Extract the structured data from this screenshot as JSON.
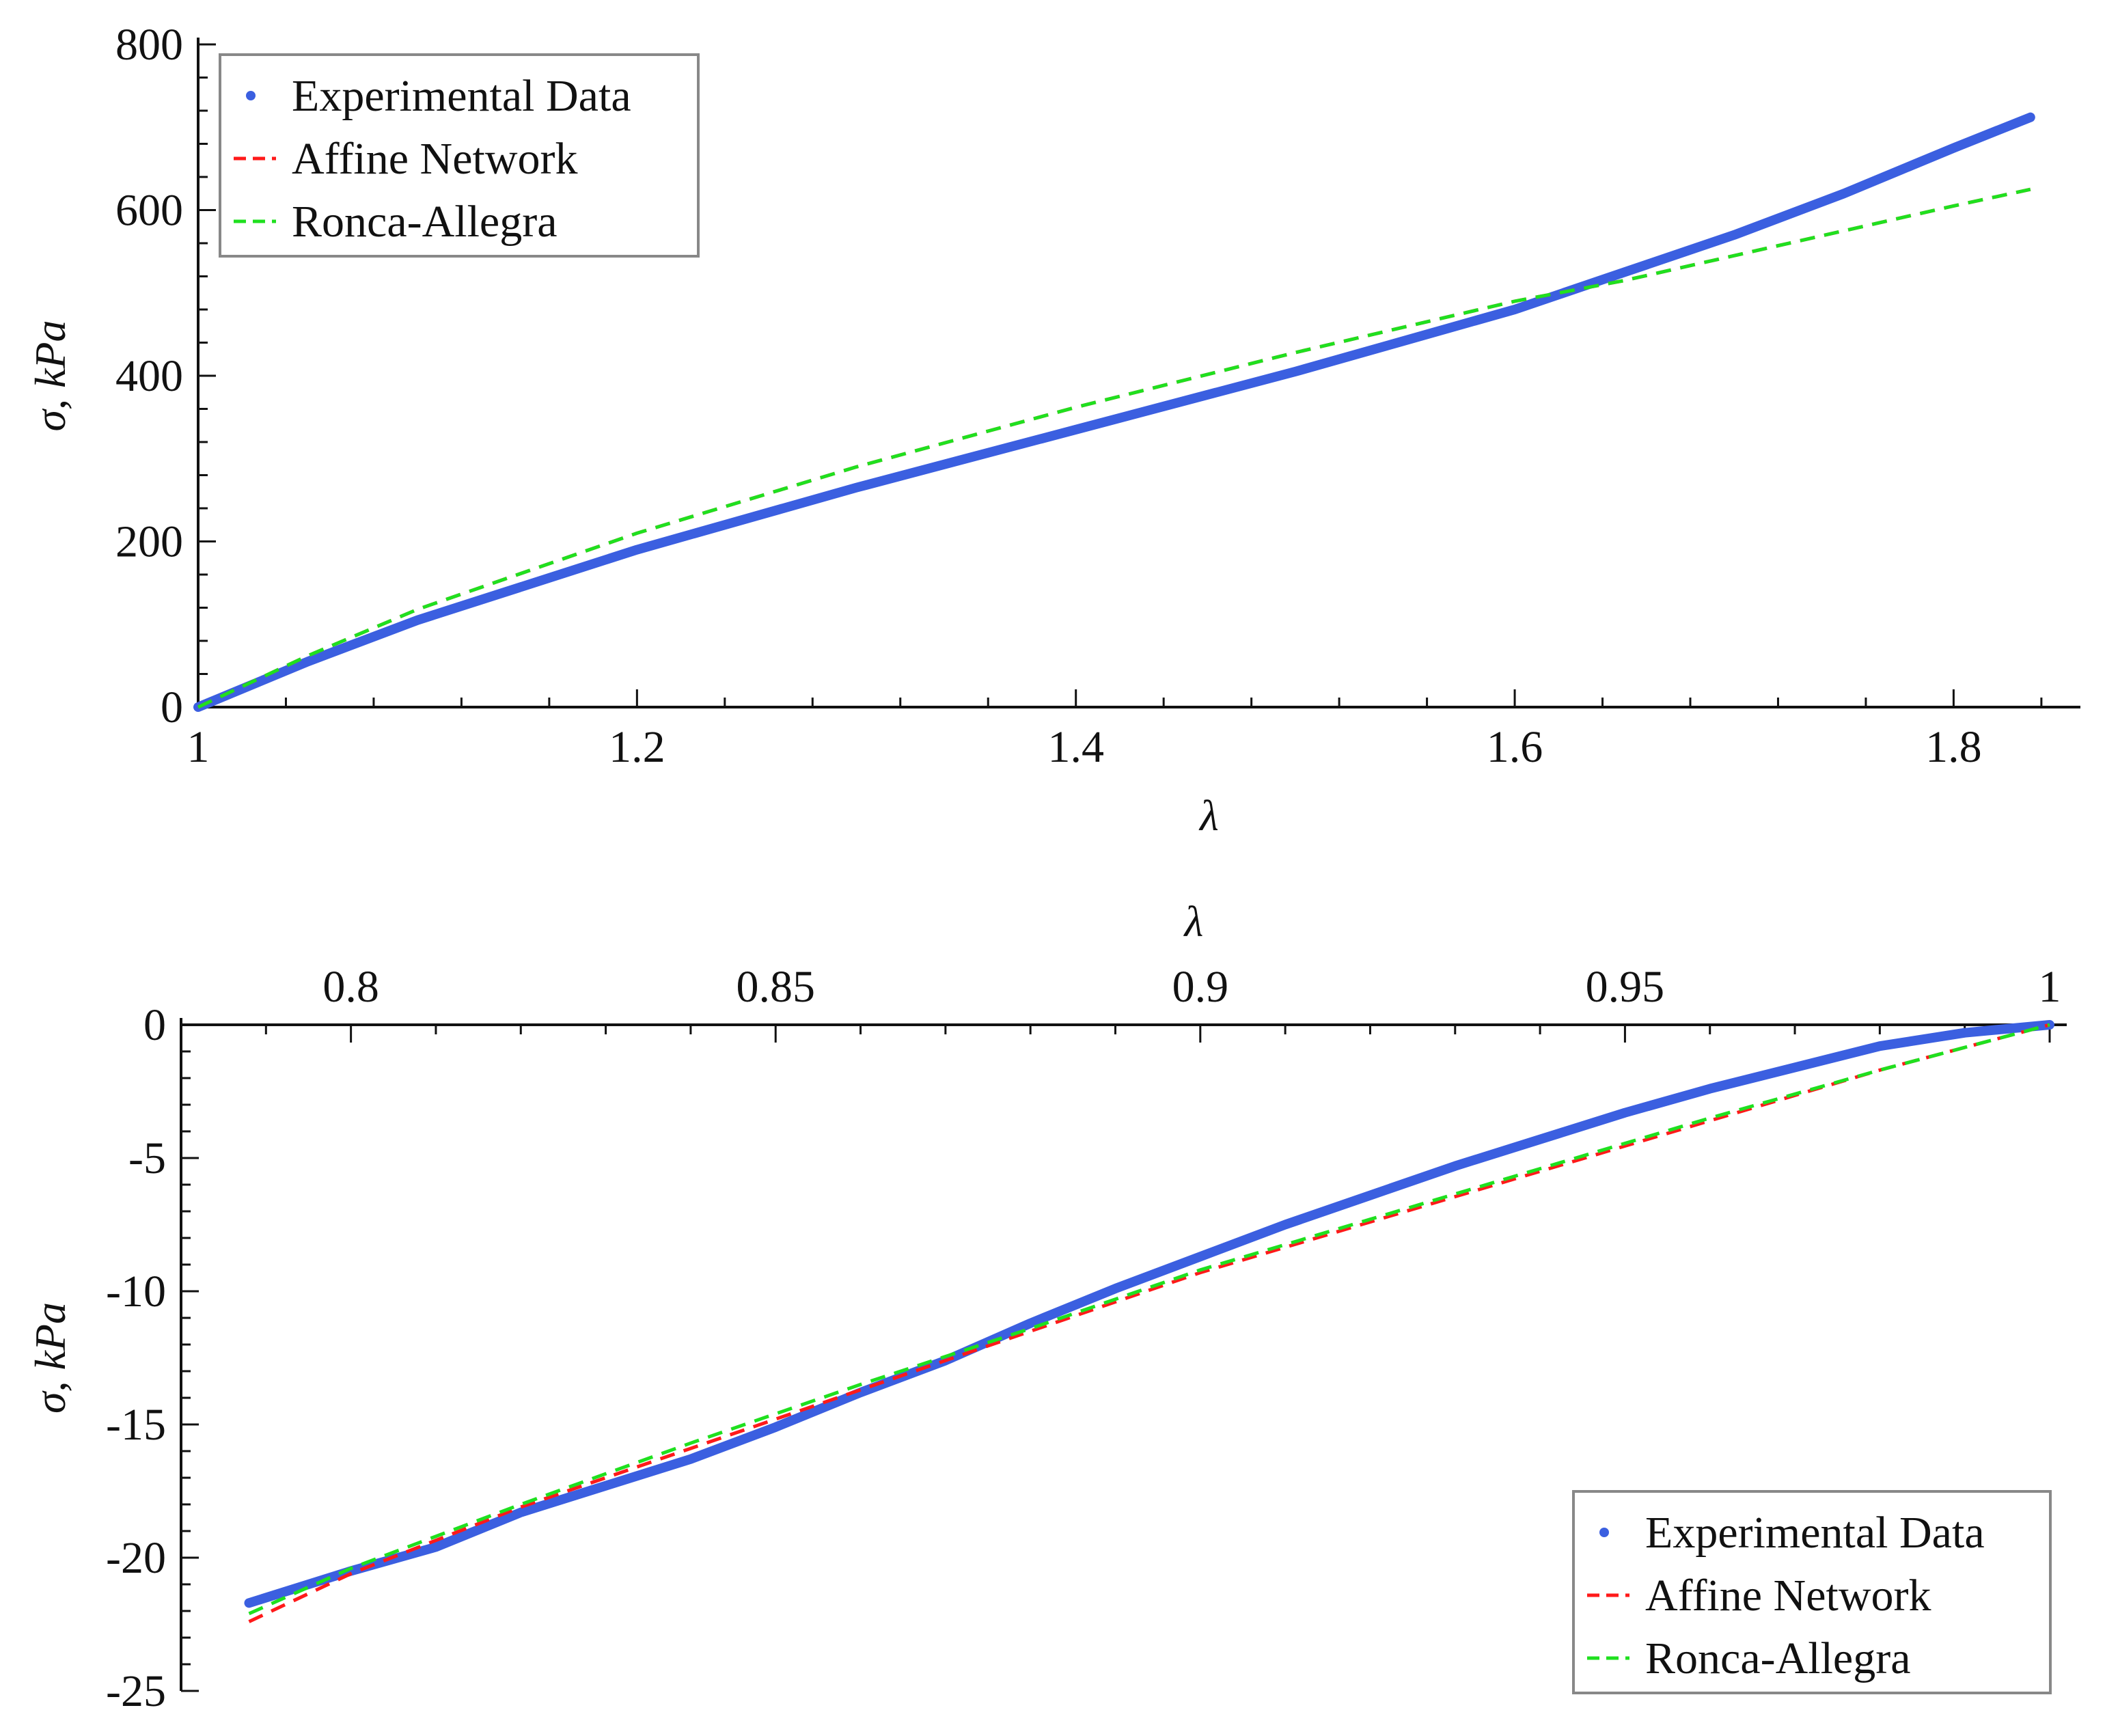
{
  "colors": {
    "experimental": "#3b5fe0",
    "affine": "#ff1a1a",
    "ronca": "#1fe01f",
    "axis": "#111111",
    "legend_border": "#888888"
  },
  "chart_data": [
    {
      "type": "line",
      "title": "",
      "xlabel": "λ",
      "ylabel": "σ, kPa",
      "xlim": [
        1.0,
        1.85
      ],
      "ylim": [
        0,
        800
      ],
      "x_ticks": [
        1,
        1.2,
        1.4,
        1.6,
        1.8
      ],
      "x_tick_labels": [
        "1",
        "1.2",
        "1.4",
        "1.6",
        "1.8"
      ],
      "y_ticks": [
        0,
        200,
        400,
        600,
        800
      ],
      "y_tick_labels": [
        "0",
        "200",
        "400",
        "600",
        "800"
      ],
      "x_axis_position": "bottom",
      "grid": false,
      "legend_position": "top-left",
      "legend": [
        "Experimental Data",
        "Affine Network",
        "Ronca-Allegra"
      ],
      "series": [
        {
          "name": "Experimental Data",
          "style": "thick-solid",
          "x": [
            1.0,
            1.05,
            1.1,
            1.2,
            1.3,
            1.4,
            1.5,
            1.6,
            1.65,
            1.7,
            1.75,
            1.8,
            1.835
          ],
          "y": [
            0,
            55,
            105,
            190,
            265,
            335,
            405,
            480,
            525,
            570,
            620,
            675,
            712
          ]
        },
        {
          "name": "Affine Network",
          "style": "dashed",
          "x": [
            1.0,
            1.05,
            1.1,
            1.2,
            1.3,
            1.4,
            1.5,
            1.6,
            1.65,
            1.7,
            1.75,
            1.8,
            1.835
          ],
          "y": [
            0,
            62,
            118,
            210,
            290,
            362,
            428,
            490,
            515,
            545,
            575,
            605,
            625
          ]
        },
        {
          "name": "Ronca-Allegra",
          "style": "dashed",
          "x": [
            1.0,
            1.05,
            1.1,
            1.2,
            1.3,
            1.4,
            1.5,
            1.6,
            1.65,
            1.7,
            1.75,
            1.8,
            1.835
          ],
          "y": [
            0,
            62,
            118,
            210,
            290,
            362,
            428,
            490,
            515,
            545,
            575,
            605,
            625
          ]
        }
      ]
    },
    {
      "type": "line",
      "title": "",
      "xlabel": "λ",
      "ylabel": "σ, kPa",
      "xlim": [
        0.78,
        1.0
      ],
      "ylim": [
        -25,
        0
      ],
      "x_ticks": [
        0.8,
        0.85,
        0.9,
        0.95,
        1
      ],
      "x_tick_labels": [
        "0.8",
        "0.85",
        "0.9",
        "0.95",
        "1"
      ],
      "y_ticks": [
        0,
        -5,
        -10,
        -15,
        -20,
        -25
      ],
      "y_tick_labels": [
        "0",
        "-5",
        "-10",
        "-15",
        "-20",
        "-25"
      ],
      "x_axis_position": "top",
      "grid": false,
      "legend_position": "bottom-right",
      "legend": [
        "Experimental Data",
        "Affine Network",
        "Ronca-Allegra"
      ],
      "series": [
        {
          "name": "Experimental Data",
          "style": "thick-solid",
          "x": [
            0.788,
            0.8,
            0.81,
            0.82,
            0.83,
            0.84,
            0.85,
            0.86,
            0.87,
            0.88,
            0.89,
            0.9,
            0.91,
            0.92,
            0.93,
            0.94,
            0.95,
            0.96,
            0.97,
            0.98,
            0.99,
            1.0
          ],
          "y": [
            -21.7,
            -20.5,
            -19.6,
            -18.3,
            -17.3,
            -16.3,
            -15.1,
            -13.8,
            -12.6,
            -11.2,
            -9.9,
            -8.7,
            -7.5,
            -6.4,
            -5.3,
            -4.3,
            -3.3,
            -2.4,
            -1.6,
            -0.8,
            -0.3,
            0
          ]
        },
        {
          "name": "Affine Network",
          "style": "dashed",
          "x": [
            0.788,
            0.8,
            0.82,
            0.84,
            0.86,
            0.88,
            0.9,
            0.92,
            0.94,
            0.96,
            0.98,
            1.0
          ],
          "y": [
            -22.4,
            -20.6,
            -18.1,
            -15.9,
            -13.7,
            -11.5,
            -9.3,
            -7.4,
            -5.5,
            -3.6,
            -1.7,
            0
          ]
        },
        {
          "name": "Ronca-Allegra",
          "style": "dashed",
          "x": [
            0.788,
            0.8,
            0.82,
            0.84,
            0.86,
            0.88,
            0.9,
            0.92,
            0.94,
            0.96,
            0.98,
            1.0
          ],
          "y": [
            -22.1,
            -20.4,
            -18.0,
            -15.7,
            -13.5,
            -11.4,
            -9.2,
            -7.3,
            -5.4,
            -3.5,
            -1.7,
            0
          ]
        }
      ]
    }
  ]
}
